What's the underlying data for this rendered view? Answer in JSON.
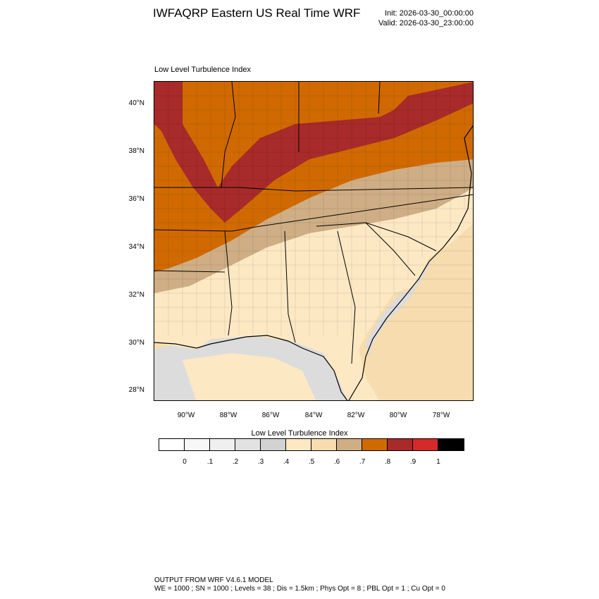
{
  "header": {
    "title": "IWFAQRP Eastern US Real Time WRF",
    "init": "Init: 2026-03-30_00:00:00",
    "valid": "Valid: 2026-03-30_23:00:00"
  },
  "plot_label": "Low Level Turbulence Index",
  "map": {
    "lat_ticks": [
      "40°N",
      "38°N",
      "36°N",
      "34°N",
      "32°N",
      "30°N",
      "28°N"
    ],
    "lon_ticks": [
      "90°W",
      "88°W",
      "86°W",
      "84°W",
      "82°W",
      "80°W",
      "78°W"
    ],
    "colors": {
      "land_base": "#fde8c4",
      "ocean_base": "#f6dcae",
      "water_gray": "#dcdcdc",
      "band_tan": "#cfae85",
      "band_orange": "#d06a00",
      "band_red": "#a82a2a"
    }
  },
  "colorbar": {
    "title": "Low Level Turbulence Index",
    "colors": [
      "#ffffff",
      "#f7f7f7",
      "#efefef",
      "#e2e2e2",
      "#d2d2d2",
      "#fde8c4",
      "#f6dcae",
      "#cfae85",
      "#d06a00",
      "#a82a2a",
      "#d62a2a",
      "#000000"
    ],
    "labels": [
      "0",
      ".1",
      ".2",
      ".3",
      ".4",
      ".5",
      ".6",
      ".7",
      ".8",
      ".9",
      "1"
    ]
  },
  "footer": {
    "line1": "OUTPUT FROM WRF V4.6.1 MODEL",
    "line2": "WE = 1000 ; SN = 1000 ; Levels = 38 ; Dis = 1.5km ; Phys Opt = 8 ; PBL Opt = 1 ; Cu Opt = 0"
  }
}
